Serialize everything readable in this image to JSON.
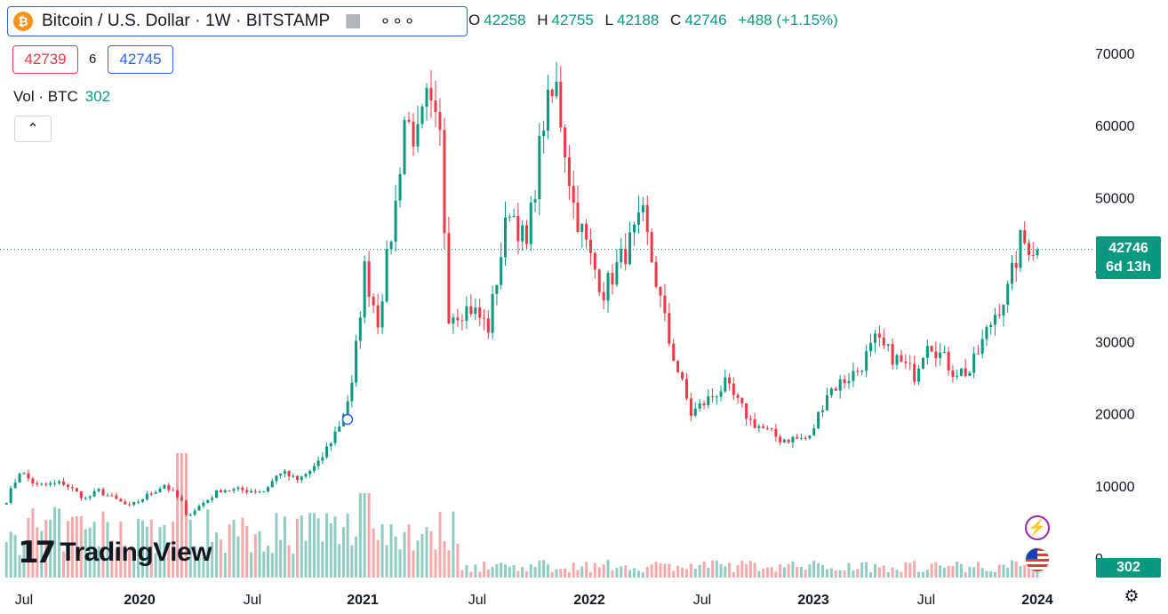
{
  "legend": {
    "coin_icon": "bitcoin-icon",
    "coin_glyph": "₿",
    "symbol_title": "Bitcoin / U.S. Dollar · 1W · BITSTAMP",
    "ohlc": {
      "open_label": "O",
      "open": "42258",
      "high_label": "H",
      "high": "42755",
      "low_label": "L",
      "low": "42188",
      "close_label": "C",
      "close": "42746",
      "change": "+488 (+1.15%)"
    },
    "sell_price": "42739",
    "spread": "6",
    "buy_price": "42745",
    "volume_label": "Vol · BTC",
    "volume_value": "302",
    "collapse_glyph": "⌃"
  },
  "price_axis_label": {
    "price": "42746",
    "countdown": "6d 13h"
  },
  "volume_axis_label": "302",
  "brand": "TradingView",
  "colors": {
    "up": "#089981",
    "down": "#f23645",
    "up_vol": "#8fcdc3",
    "down_vol": "#f7a9a9",
    "accent": "#2962ff"
  },
  "chart_data": {
    "type": "candlestick",
    "interval": "1W",
    "price_axis": {
      "range": [
        0,
        70000
      ],
      "ticks": [
        "70000",
        "60000",
        "50000",
        "40000",
        "30000",
        "20000",
        "10000",
        "0"
      ]
    },
    "time_axis": {
      "ticks": [
        "Jul",
        "2020",
        "Jul",
        "2021",
        "Jul",
        "2022",
        "Jul",
        "2023",
        "Jul",
        "2024"
      ],
      "bold_ticks": [
        "2020",
        "2021",
        "2022",
        "2023",
        "2024"
      ]
    },
    "last_price": 42746,
    "series_close_anchors": [
      [
        "2019-06-03",
        8000
      ],
      [
        "2019-06-24",
        12000
      ],
      [
        "2019-07-22",
        10000
      ],
      [
        "2019-09-02",
        10400
      ],
      [
        "2019-10-07",
        8200
      ],
      [
        "2019-10-28",
        9300
      ],
      [
        "2019-12-16",
        7100
      ],
      [
        "2020-02-10",
        10200
      ],
      [
        "2020-03-09",
        7800
      ],
      [
        "2020-03-16",
        5800
      ],
      [
        "2020-05-11",
        9500
      ],
      [
        "2020-07-20",
        9300
      ],
      [
        "2020-08-17",
        12000
      ],
      [
        "2020-09-14",
        10700
      ],
      [
        "2020-10-19",
        13000
      ],
      [
        "2020-11-23",
        18500
      ],
      [
        "2020-12-14",
        23700
      ],
      [
        "2021-01-04",
        40000
      ],
      [
        "2021-01-25",
        33000
      ],
      [
        "2021-02-22",
        49000
      ],
      [
        "2021-03-08",
        61000
      ],
      [
        "2021-03-29",
        58000
      ],
      [
        "2021-04-12",
        63000
      ],
      [
        "2021-05-03",
        58000
      ],
      [
        "2021-05-17",
        34000
      ],
      [
        "2021-06-21",
        34700
      ],
      [
        "2021-07-19",
        32000
      ],
      [
        "2021-08-23",
        49000
      ],
      [
        "2021-09-20",
        43000
      ],
      [
        "2021-10-18",
        61000
      ],
      [
        "2021-11-08",
        65000
      ],
      [
        "2021-12-06",
        49000
      ],
      [
        "2022-01-03",
        41500
      ],
      [
        "2022-01-24",
        37000
      ],
      [
        "2022-03-28",
        47000
      ],
      [
        "2022-05-09",
        30000
      ],
      [
        "2022-06-13",
        20000
      ],
      [
        "2022-08-08",
        24000
      ],
      [
        "2022-09-19",
        19000
      ],
      [
        "2022-11-07",
        16500
      ],
      [
        "2022-12-26",
        16600
      ],
      [
        "2023-01-23",
        23000
      ],
      [
        "2023-03-13",
        26000
      ],
      [
        "2023-04-10",
        30000
      ],
      [
        "2023-06-12",
        25500
      ],
      [
        "2023-07-03",
        30500
      ],
      [
        "2023-08-14",
        26000
      ],
      [
        "2023-09-11",
        25800
      ],
      [
        "2023-10-23",
        34000
      ],
      [
        "2023-11-13",
        37000
      ],
      [
        "2023-12-04",
        43800
      ],
      [
        "2023-12-18",
        43500
      ],
      [
        "2024-01-01",
        42746
      ]
    ],
    "volume": {
      "last_value": 302
    }
  },
  "icons": {
    "settings": "gear-icon",
    "lightning": "lightning-icon",
    "flag": "us-flag-icon",
    "more": "more-dots-icon"
  }
}
